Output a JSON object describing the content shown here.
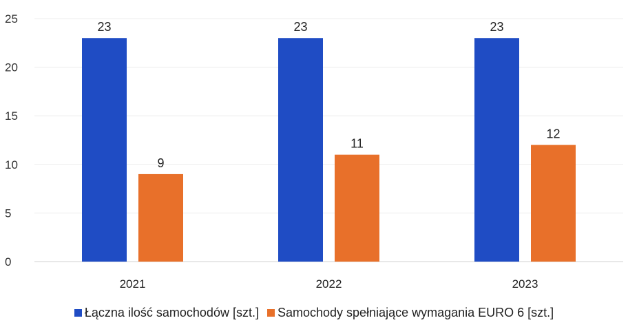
{
  "chart_data": {
    "type": "bar",
    "categories": [
      "2021",
      "2022",
      "2023"
    ],
    "series": [
      {
        "name": "Łączna ilość samochodów [szt.]",
        "values": [
          23,
          23,
          23
        ],
        "color": "#1f4cc4"
      },
      {
        "name": "Samochody spełniające wymagania EURO 6 [szt.]",
        "values": [
          9,
          11,
          12
        ],
        "color": "#e8702a"
      }
    ],
    "title": "",
    "xlabel": "",
    "ylabel": "",
    "ylim": [
      0,
      25
    ],
    "yticks": [
      0,
      5,
      10,
      15,
      20,
      25
    ],
    "grid": true,
    "legend": "bottom",
    "data_labels": true
  }
}
